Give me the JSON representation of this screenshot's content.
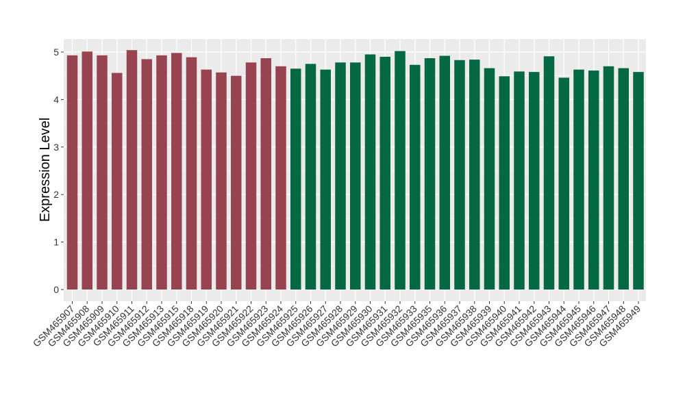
{
  "chart_data": {
    "type": "bar",
    "title": "",
    "xlabel": "",
    "ylabel": "Expression Level",
    "ylim": [
      0,
      5.2
    ],
    "yticks": [
      0,
      1,
      2,
      3,
      4,
      5
    ],
    "grid": true,
    "legend": "none",
    "categories": [
      "GSM465907",
      "GSM465908",
      "GSM465909",
      "GSM465910",
      "GSM465911",
      "GSM465912",
      "GSM465913",
      "GSM465915",
      "GSM465918",
      "GSM465919",
      "GSM465920",
      "GSM465921",
      "GSM465922",
      "GSM465923",
      "GSM465924",
      "GSM465925",
      "GSM465926",
      "GSM465927",
      "GSM465928",
      "GSM465929",
      "GSM465930",
      "GSM465931",
      "GSM465932",
      "GSM465933",
      "GSM465935",
      "GSM465936",
      "GSM465937",
      "GSM465938",
      "GSM465939",
      "GSM465940",
      "GSM465941",
      "GSM465942",
      "GSM465943",
      "GSM465944",
      "GSM465945",
      "GSM465946",
      "GSM465947",
      "GSM465948",
      "GSM465949"
    ],
    "values": [
      4.93,
      5.01,
      4.93,
      4.56,
      5.04,
      4.85,
      4.93,
      4.98,
      4.89,
      4.63,
      4.57,
      4.5,
      4.78,
      4.87,
      4.7,
      4.65,
      4.75,
      4.63,
      4.78,
      4.78,
      4.95,
      4.9,
      5.02,
      4.73,
      4.87,
      4.92,
      4.83,
      4.84,
      4.66,
      4.49,
      4.59,
      4.58,
      4.91,
      4.46,
      4.63,
      4.61,
      4.7,
      4.66,
      4.58
    ],
    "groups": [
      0,
      0,
      0,
      0,
      0,
      0,
      0,
      0,
      0,
      0,
      0,
      0,
      0,
      0,
      0,
      1,
      1,
      1,
      1,
      1,
      1,
      1,
      1,
      1,
      1,
      1,
      1,
      1,
      1,
      1,
      1,
      1,
      1,
      1,
      1,
      1,
      1,
      1,
      1
    ],
    "group_colors": [
      "#984450",
      "#046843"
    ],
    "panel_background": "#ebebeb",
    "grid_color": "#ffffff"
  }
}
